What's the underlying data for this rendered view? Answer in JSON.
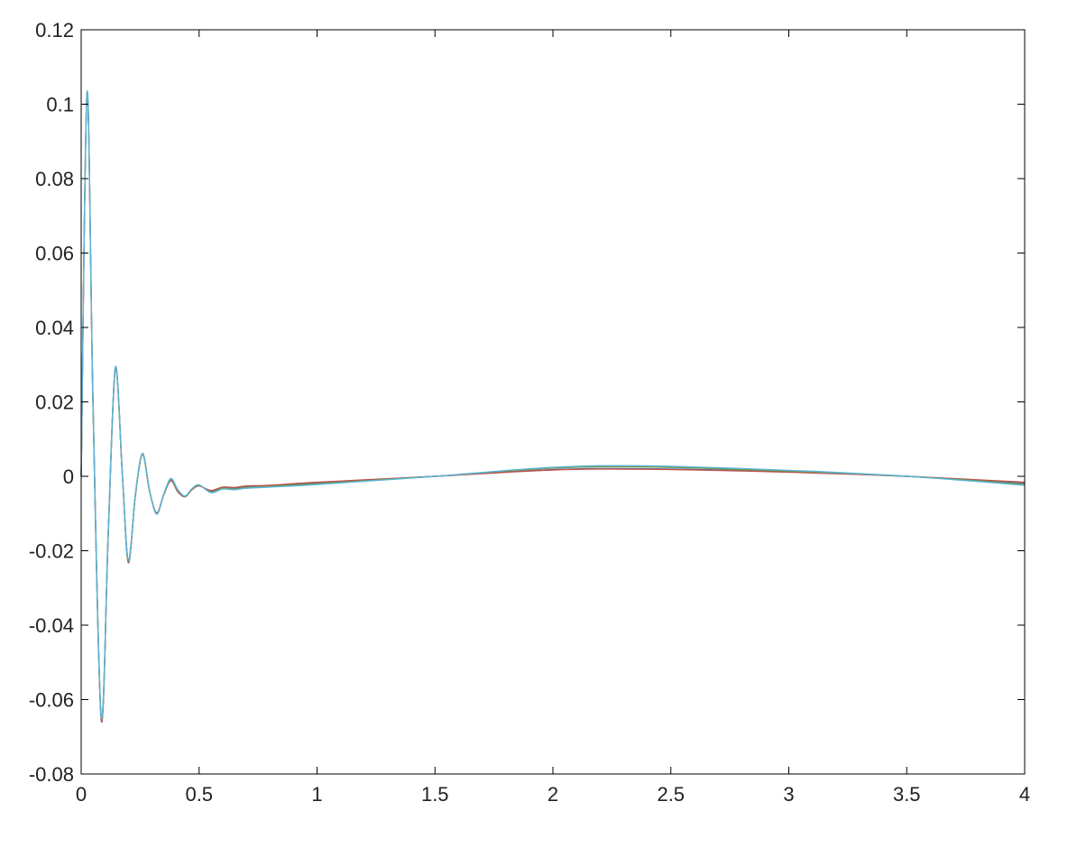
{
  "chart_data": {
    "type": "line",
    "title": "",
    "xlabel": "",
    "ylabel": "",
    "xlim": [
      0,
      4
    ],
    "ylim": [
      -0.08,
      0.12
    ],
    "grid": false,
    "legend": "none",
    "x_ticks": [
      0,
      0.5,
      1,
      1.5,
      2,
      2.5,
      3,
      3.5,
      4
    ],
    "x_tick_labels": [
      "0",
      "0.5",
      "1",
      "1.5",
      "2",
      "2.5",
      "3",
      "3.5",
      "4"
    ],
    "y_ticks": [
      -0.08,
      -0.06,
      -0.04,
      -0.02,
      0,
      0.02,
      0.04,
      0.06,
      0.08,
      0.1,
      0.12
    ],
    "y_tick_labels": [
      "-0.08",
      "-0.06",
      "-0.04",
      "-0.02",
      "0",
      "0.02",
      "0.04",
      "0.06",
      "0.08",
      "0.1",
      "0.12"
    ],
    "series": [
      {
        "color": "#4a6fb5",
        "x": [
          0,
          0.025,
          0.05,
          0.085,
          0.115,
          0.145,
          0.175,
          0.2,
          0.23,
          0.26,
          0.29,
          0.32,
          0.35,
          0.38,
          0.41,
          0.44,
          0.47,
          0.5,
          0.55,
          0.6,
          0.65,
          0.7,
          0.8,
          1.0,
          1.5,
          2.0,
          2.4,
          3.0,
          3.5,
          4.0
        ],
        "y": [
          0,
          0.103,
          0.02,
          -0.065,
          -0.015,
          0.029,
          0.0,
          -0.023,
          -0.005,
          0.006,
          -0.004,
          -0.01,
          -0.005,
          -0.001,
          -0.004,
          -0.0055,
          -0.0035,
          -0.0025,
          -0.004,
          -0.003,
          -0.0032,
          -0.0028,
          -0.0025,
          -0.0018,
          0.0,
          0.0018,
          0.002,
          0.0012,
          0.0,
          -0.0018
        ]
      },
      {
        "color": "#c0504d",
        "x": [
          0,
          0.025,
          0.05,
          0.085,
          0.115,
          0.145,
          0.175,
          0.2,
          0.23,
          0.26,
          0.29,
          0.32,
          0.35,
          0.38,
          0.41,
          0.44,
          0.47,
          0.5,
          0.55,
          0.6,
          0.65,
          0.7,
          0.8,
          1.0,
          1.5,
          2.0,
          2.4,
          3.0,
          3.5,
          4.0
        ],
        "y": [
          0,
          0.1028,
          0.0198,
          -0.0655,
          -0.015,
          0.0288,
          0.0,
          -0.0232,
          -0.005,
          0.0059,
          -0.004,
          -0.0098,
          -0.005,
          -0.0012,
          -0.0042,
          -0.0055,
          -0.0036,
          -0.0026,
          -0.0038,
          -0.0029,
          -0.003,
          -0.0026,
          -0.0024,
          -0.0016,
          0.0,
          0.0017,
          0.0019,
          0.0011,
          0.0,
          -0.0016
        ]
      },
      {
        "color": "#6a9a46",
        "x": [
          0,
          0.025,
          0.05,
          0.085,
          0.115,
          0.145,
          0.175,
          0.2,
          0.23,
          0.26,
          0.29,
          0.32,
          0.35,
          0.38,
          0.41,
          0.44,
          0.47,
          0.5,
          0.55,
          0.6,
          0.65,
          0.7,
          0.8,
          1.0,
          1.5,
          2.0,
          2.4,
          3.0,
          3.5,
          4.0
        ],
        "y": [
          0,
          0.1032,
          0.0202,
          -0.0648,
          -0.0148,
          0.0292,
          0.0001,
          -0.0228,
          -0.0049,
          0.0061,
          -0.0039,
          -0.0101,
          -0.0049,
          -0.0008,
          -0.0038,
          -0.0054,
          -0.0034,
          -0.0024,
          -0.0042,
          -0.0032,
          -0.0034,
          -0.003,
          -0.0027,
          -0.002,
          0.0,
          0.0022,
          0.0025,
          0.0014,
          0.0,
          -0.0021
        ]
      },
      {
        "color": "#5bb3d9",
        "x": [
          0,
          0.025,
          0.05,
          0.085,
          0.115,
          0.145,
          0.175,
          0.2,
          0.23,
          0.26,
          0.29,
          0.32,
          0.35,
          0.38,
          0.41,
          0.44,
          0.47,
          0.5,
          0.55,
          0.6,
          0.65,
          0.7,
          0.8,
          1.0,
          1.5,
          2.0,
          2.4,
          3.0,
          3.5,
          4.0
        ],
        "y": [
          0,
          0.1034,
          0.0204,
          -0.0645,
          -0.0146,
          0.0294,
          0.0002,
          -0.0226,
          -0.0048,
          0.0062,
          -0.0038,
          -0.0102,
          -0.0048,
          -0.0006,
          -0.0036,
          -0.0053,
          -0.0033,
          -0.0023,
          -0.0044,
          -0.0034,
          -0.0036,
          -0.0032,
          -0.0029,
          -0.0022,
          0.0,
          0.0024,
          0.0028,
          0.0016,
          0.0,
          -0.0024
        ]
      }
    ]
  }
}
